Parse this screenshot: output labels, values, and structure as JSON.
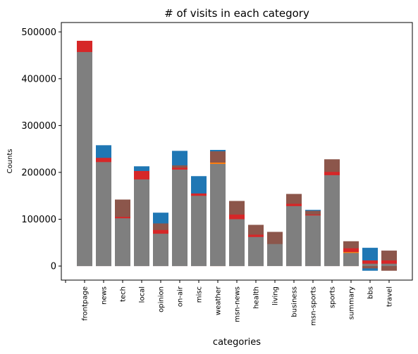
{
  "chart_data": {
    "type": "bar",
    "title": "# of visits in each category",
    "xlabel": "categories",
    "ylabel": "Counts",
    "ylim": [
      -30000,
      520000
    ],
    "yticks": [
      "0",
      "100000",
      "200000",
      "300000",
      "400000",
      "500000"
    ],
    "ytick_values": [
      0,
      100000,
      200000,
      300000,
      400000,
      500000
    ],
    "grid": false,
    "legend": "none",
    "categories": [
      "frontpage",
      "news",
      "tech",
      "local",
      "opinion",
      "on-air",
      "misc",
      "weather",
      "msn-news",
      "health",
      "living",
      "business",
      "msn-sports",
      "sports",
      "summary",
      "bbs",
      "travel"
    ],
    "colors": {
      "gray": "#7f7f7f",
      "blue": "#1f77b4",
      "brown": "#8c564b",
      "red": "#d62728",
      "orange": "#ff7f0e"
    },
    "series": [
      {
        "color_key": "blue",
        "values": [
          457000,
          258000,
          110000,
          213000,
          114000,
          246000,
          192000,
          248000,
          125000,
          73000,
          0,
          147000,
          120000,
          224000,
          45000,
          39000,
          31000
        ]
      },
      {
        "color_key": "brown",
        "values": [
          440000,
          228000,
          142000,
          195000,
          91000,
          215000,
          154000,
          245000,
          139000,
          88000,
          73000,
          154000,
          118000,
          228000,
          53000,
          10000,
          33000
        ]
      },
      {
        "color_key": "red",
        "values": [
          481000,
          231000,
          105000,
          203000,
          77000,
          210000,
          155000,
          220000,
          110000,
          67000,
          0,
          133000,
          110000,
          201000,
          38000,
          12000,
          12000
        ]
      },
      {
        "color_key": "orange",
        "values": [
          0,
          0,
          0,
          0,
          0,
          0,
          0,
          221000,
          0,
          0,
          0,
          0,
          0,
          0,
          30000,
          0,
          0
        ]
      },
      {
        "color_key": "blue",
        "values": [
          0,
          0,
          0,
          0,
          0,
          0,
          0,
          0,
          0,
          0,
          0,
          0,
          0,
          0,
          0,
          -10000,
          -8000
        ]
      },
      {
        "color_key": "brown",
        "values": [
          0,
          0,
          0,
          0,
          0,
          0,
          0,
          0,
          0,
          0,
          0,
          0,
          0,
          0,
          0,
          -5000,
          -10000
        ]
      },
      {
        "color_key": "gray",
        "values": [
          457000,
          222000,
          102000,
          185000,
          69000,
          206000,
          150000,
          218000,
          100000,
          62000,
          47000,
          128000,
          108000,
          194000,
          28000,
          5000,
          5000
        ]
      }
    ]
  }
}
